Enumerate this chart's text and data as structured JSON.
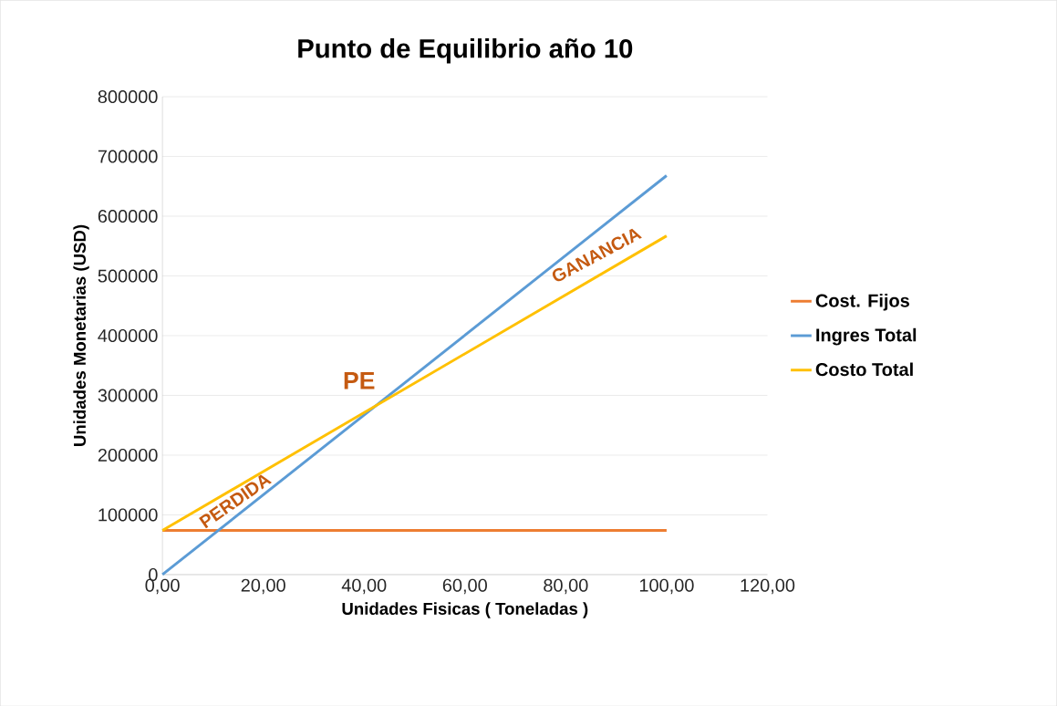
{
  "chart_data": {
    "type": "line",
    "title": "Punto de Equilibrio año 10",
    "xlabel": "Unidades Fisicas ( Toneladas )",
    "ylabel": "Unidades Monetarias (USD)",
    "x": [
      0,
      100
    ],
    "series": [
      {
        "name": "Cost. Fijos",
        "color": "#ed7d31",
        "values": [
          74000,
          74000
        ]
      },
      {
        "name": "Ingres Total",
        "color": "#5b9bd5",
        "values": [
          0,
          668000
        ]
      },
      {
        "name": "Costo Total",
        "color": "#ffc000",
        "values": [
          74000,
          567000
        ]
      }
    ],
    "xlim": [
      0,
      120
    ],
    "ylim": [
      0,
      800000
    ],
    "xticks": [
      {
        "value": 0,
        "label": "0,00"
      },
      {
        "value": 20,
        "label": "20,00"
      },
      {
        "value": 40,
        "label": "40,00"
      },
      {
        "value": 60,
        "label": "60,00"
      },
      {
        "value": 80,
        "label": "80,00"
      },
      {
        "value": 100,
        "label": "100,00"
      },
      {
        "value": 120,
        "label": "120,00"
      }
    ],
    "yticks": [
      0,
      100000,
      200000,
      300000,
      400000,
      500000,
      600000,
      700000,
      800000
    ],
    "annotations": [
      "PE",
      "PERDIDA",
      "GANANCIA"
    ],
    "grid": "y",
    "legend": "right",
    "marker": "none",
    "line_style": "solid"
  }
}
